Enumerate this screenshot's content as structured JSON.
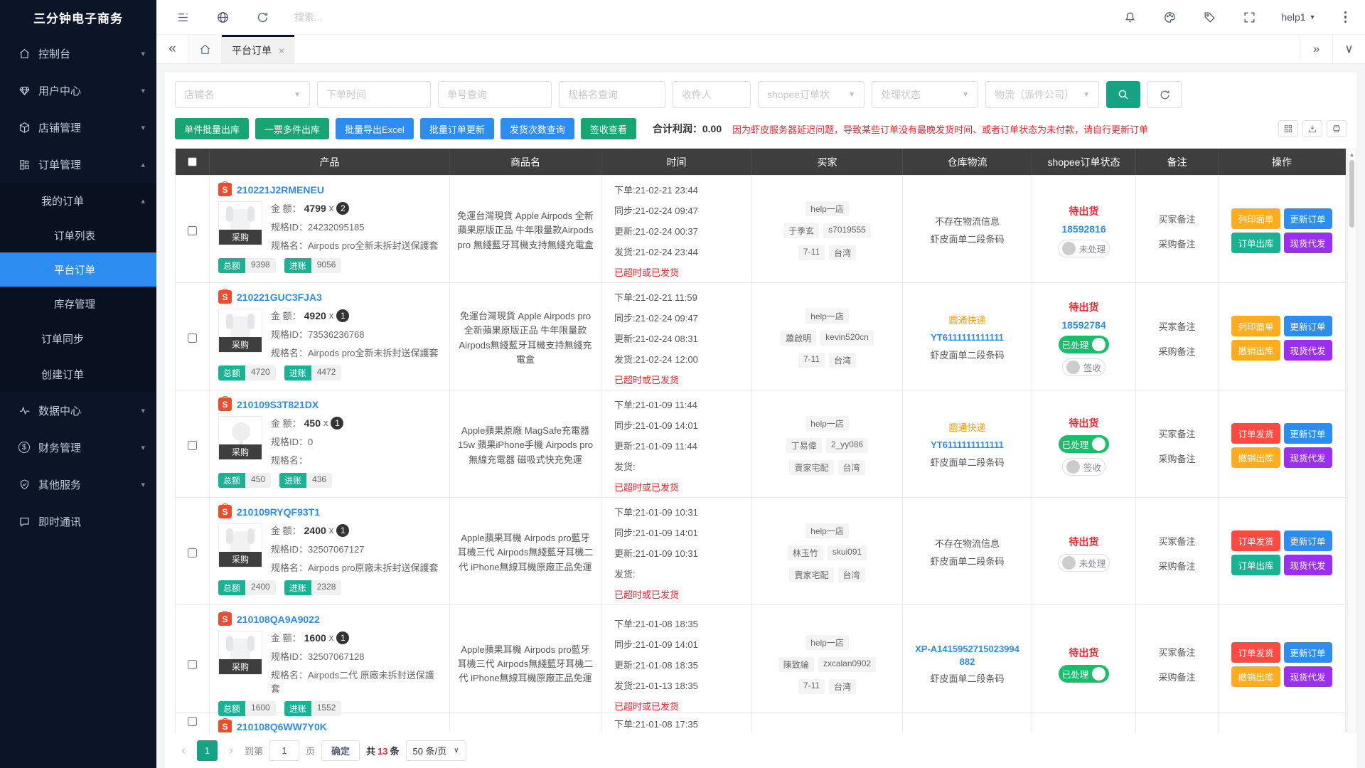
{
  "app": {
    "title": "三分钟电子商务",
    "user": "help1"
  },
  "topbar": {
    "search_placeholder": "搜索...",
    "icons": [
      "menu-icon",
      "globe-icon",
      "refresh-icon"
    ],
    "right_icons": [
      "bell-icon",
      "palette-icon",
      "tag-icon",
      "fullscreen-icon",
      "more-icon"
    ]
  },
  "tabbar": {
    "collapse": "«",
    "active_tab": "平台订单",
    "close": "×",
    "expand": "»",
    "chevron_down": "∨"
  },
  "sidebar": {
    "items": [
      {
        "label": "控制台",
        "icon": "home-icon",
        "caret": "down",
        "level": 0
      },
      {
        "label": "用户中心",
        "icon": "user-icon",
        "caret": "down",
        "level": 0
      },
      {
        "label": "店铺管理",
        "icon": "shop-icon",
        "caret": "down",
        "level": 0
      },
      {
        "label": "订单管理",
        "icon": "orders-icon",
        "caret": "up",
        "level": 0
      },
      {
        "label": "我的订单",
        "caret": "up",
        "level": 1
      },
      {
        "label": "订单列表",
        "level": 2
      },
      {
        "label": "平台订单",
        "level": 2,
        "active": true
      },
      {
        "label": "库存管理",
        "level": 2
      },
      {
        "label": "订单同步",
        "level": 1
      },
      {
        "label": "创建订单",
        "level": 1
      },
      {
        "label": "数据中心",
        "icon": "data-icon",
        "caret": "down",
        "level": 0
      },
      {
        "label": "财务管理",
        "icon": "finance-icon",
        "caret": "down",
        "level": 0
      },
      {
        "label": "其他服务",
        "icon": "services-icon",
        "caret": "down",
        "level": 0
      },
      {
        "label": "即时通讯",
        "icon": "chat-icon",
        "level": 0
      }
    ]
  },
  "filters": [
    {
      "placeholder": "店铺名",
      "type": "select"
    },
    {
      "placeholder": "下单时间",
      "type": "input"
    },
    {
      "placeholder": "单号查询",
      "type": "input"
    },
    {
      "placeholder": "规格名查询",
      "type": "input"
    },
    {
      "placeholder": "收件人",
      "type": "input"
    },
    {
      "placeholder": "shopee订单状",
      "type": "select"
    },
    {
      "placeholder": "处理状态",
      "type": "select"
    },
    {
      "placeholder": "物流（派件公司）",
      "type": "select"
    }
  ],
  "toolbar": {
    "buttons": [
      {
        "label": "单件批量出库",
        "color": "green"
      },
      {
        "label": "一票多件出库",
        "color": "green"
      },
      {
        "label": "批量导出Excel",
        "color": "blue"
      },
      {
        "label": "批量订单更新",
        "color": "blue"
      },
      {
        "label": "发货次数查询",
        "color": "blue"
      },
      {
        "label": "签收查看",
        "color": "green"
      }
    ],
    "profit": "合计利润：0.00",
    "warning": "因为虾皮服务器延迟问题，导致某些订单没有最晚发货时间、或者订单状态为未付款，请自行更新订单",
    "mini_icons": [
      "grid-icon",
      "export-icon",
      "print-icon"
    ]
  },
  "table": {
    "headers": [
      "产品",
      "商品名",
      "时间",
      "买家",
      "仓库物流",
      "shopee订单状态",
      "备注",
      "操作"
    ],
    "row_labels": {
      "amount": "金 额：",
      "multiply": "x",
      "spec_id": "规格ID：",
      "spec_name": "规格名：",
      "purchase": "采购",
      "total": "总额",
      "income": "进账"
    },
    "rows": [
      {
        "order_no": "210221J2RMENEU",
        "thumb": "airpods-2-image",
        "amount": "4799",
        "qty": "2",
        "spec_id": "24232095185",
        "spec_name": "Airpods pro全新未拆封送保護套",
        "total": "9398",
        "income": "9056",
        "product_name": "免運台灣現貨 Apple Airpods 全新蘋果原版正品 牛年限量款Airpods pro 無綫藍牙耳機支持無綫充電盒",
        "times": [
          "下单:21-02-21 23:44",
          "同步:21-02-24 09:47",
          "更新:21-02-24 00:37",
          "发货:21-02-24 23:44"
        ],
        "time_warning": "已超时或已发货",
        "buyer": [
          [
            "help一店"
          ],
          [
            "于季玄",
            "s7019555"
          ],
          [
            "7-11",
            "台湾"
          ]
        ],
        "warehouse": [
          {
            "text": "不存在物流信息",
            "style": "dark"
          },
          {
            "text": "虾皮面单二段条码",
            "style": "dark"
          }
        ],
        "status": {
          "state": "待出货",
          "number": "18592816",
          "toggles": [
            {
              "label": "未处理",
              "on": false
            }
          ]
        },
        "remarks": [
          "买家备注",
          "采购备注"
        ],
        "actions": [
          {
            "label": "列印面单",
            "color": "orange"
          },
          {
            "label": "更新订单",
            "color": "blue"
          },
          {
            "label": "订单出库",
            "color": "teal"
          },
          {
            "label": "现货代发",
            "color": "purple"
          }
        ]
      },
      {
        "order_no": "210221GUC3FJA3",
        "thumb": "airpods-pro-image",
        "amount": "4920",
        "qty": "1",
        "spec_id": "73536236768",
        "spec_name": "Airpods pro全新未拆封送保護套",
        "total": "4720",
        "income": "4472",
        "product_name": "免運台灣現貨 Apple Airpods pro 全新蘋果原版正品 牛年限量款 Airpods無綫藍牙耳機支持無綫充電盒",
        "times": [
          "下单:21-02-21 11:59",
          "同步:21-02-24 09:47",
          "更新:21-02-24 08:31",
          "发货:21-02-24 12:00"
        ],
        "time_warning": "已超时或已发货",
        "buyer": [
          [
            "help一店"
          ],
          [
            "蕭啟明",
            "kevin520cn"
          ],
          [
            "7-11",
            "台湾"
          ]
        ],
        "warehouse": [
          {
            "text": "圆通快递",
            "style": "orange"
          },
          {
            "text": "YT6111111111111",
            "style": "blue"
          },
          {
            "text": "虾皮面单二段条码",
            "style": "dark"
          }
        ],
        "status": {
          "state": "待出货",
          "number": "18592784",
          "toggles": [
            {
              "label": "已处理",
              "on": true
            },
            {
              "label": "签收",
              "on": false
            }
          ]
        },
        "remarks": [
          "买家备注",
          "采购备注"
        ],
        "actions": [
          {
            "label": "列印面单",
            "color": "orange"
          },
          {
            "label": "更新订单",
            "color": "blue"
          },
          {
            "label": "撤销出库",
            "color": "orange"
          },
          {
            "label": "现货代发",
            "color": "purple"
          }
        ]
      },
      {
        "order_no": "210109S3T821DX",
        "thumb": "magsafe-charger-image",
        "amount": "450",
        "qty": "1",
        "spec_id": "0",
        "spec_name": "",
        "total": "450",
        "income": "436",
        "product_name": "Apple蘋果原廠 MagSafe充電器15w 蘋果iPhone手機 Airpods pro 無線充電器 磁吸式快充免運",
        "times": [
          "下单:21-01-09 11:44",
          "同步:21-01-09 14:01",
          "更新:21-01-09 11:44",
          "发货:"
        ],
        "time_warning": "已超时或已发货",
        "buyer": [
          [
            "help一店"
          ],
          [
            "丁易偉",
            "2_yy086"
          ],
          [
            "賣家宅配",
            "台湾"
          ]
        ],
        "warehouse": [
          {
            "text": "圆通快递",
            "style": "orange"
          },
          {
            "text": "YT6111111111111",
            "style": "blue"
          },
          {
            "text": "虾皮面单二段条码",
            "style": "dark"
          }
        ],
        "status": {
          "state": "待出货",
          "number": "",
          "toggles": [
            {
              "label": "已处理",
              "on": true
            },
            {
              "label": "签收",
              "on": false
            }
          ]
        },
        "remarks": [
          "买家备注",
          "采购备注"
        ],
        "actions": [
          {
            "label": "订单发货",
            "color": "red"
          },
          {
            "label": "更新订单",
            "color": "blue"
          },
          {
            "label": "撤销出库",
            "color": "orange"
          },
          {
            "label": "现货代发",
            "color": "purple"
          }
        ]
      },
      {
        "order_no": "210109RYQF93T1",
        "thumb": "airpods-pro-image",
        "amount": "2400",
        "qty": "1",
        "spec_id": "32507067127",
        "spec_name": "Airpods pro原廠未拆封送保護套",
        "total": "2400",
        "income": "2328",
        "product_name": "Apple蘋果耳機 Airpods pro藍牙耳機三代 Airpods無綫藍牙耳機二代 iPhone無線耳機原廠正品免運",
        "times": [
          "下单:21-01-09 10:31",
          "同步:21-01-09 14:01",
          "更新:21-01-09 10:31",
          "发货:"
        ],
        "time_warning": "已超时或已发货",
        "buyer": [
          [
            "help一店"
          ],
          [
            "林玉竹",
            "skui091"
          ],
          [
            "賣家宅配",
            "台湾"
          ]
        ],
        "warehouse": [
          {
            "text": "不存在物流信息",
            "style": "dark"
          },
          {
            "text": "虾皮面单二段条码",
            "style": "dark"
          }
        ],
        "status": {
          "state": "待出货",
          "number": "",
          "toggles": [
            {
              "label": "未处理",
              "on": false
            }
          ]
        },
        "remarks": [
          "买家备注",
          "采购备注"
        ],
        "actions": [
          {
            "label": "订单发货",
            "color": "red"
          },
          {
            "label": "更新订单",
            "color": "blue"
          },
          {
            "label": "订单出库",
            "color": "teal"
          },
          {
            "label": "现货代发",
            "color": "purple"
          }
        ]
      },
      {
        "order_no": "210108QA9A9022",
        "thumb": "airpods-2-image",
        "amount": "1600",
        "qty": "1",
        "spec_id": "32507067128",
        "spec_name": "Airpods二代 原廠未拆封送保護套",
        "total": "1600",
        "income": "1552",
        "product_name": "Apple蘋果耳機 Airpods pro藍牙耳機三代 Airpods無綫藍牙耳機二代 iPhone無線耳機原廠正品免運",
        "times": [
          "下单:21-01-08 18:35",
          "同步:21-01-09 14:01",
          "更新:21-01-08 18:35",
          "发货:21-01-13 18:35"
        ],
        "time_warning": "已超时或已发货",
        "buyer": [
          [
            "help一店"
          ],
          [
            "陳致綸",
            "zxcalan0902"
          ],
          [
            "7-11",
            "台湾"
          ]
        ],
        "warehouse": [
          {
            "text": "XP-A1415952715023994882",
            "style": "blue"
          },
          {
            "text": "虾皮面单二段条码",
            "style": "dark"
          }
        ],
        "status": {
          "state": "待出货",
          "number": "",
          "toggles": [
            {
              "label": "已处理",
              "on": true
            }
          ]
        },
        "remarks": [
          "买家备注",
          "采购备注"
        ],
        "actions": [
          {
            "label": "订单发货",
            "color": "red"
          },
          {
            "label": "更新订单",
            "color": "blue"
          },
          {
            "label": "撤销出库",
            "color": "orange"
          },
          {
            "label": "现货代发",
            "color": "purple"
          }
        ]
      },
      {
        "order_no": "210108Q6WW7Y0K",
        "partial": true,
        "times": [
          "下单:21-01-08 17:35"
        ]
      }
    ]
  },
  "pagination": {
    "prev": "‹",
    "next": "›",
    "current_page": "1",
    "goto_label": "到第",
    "page_input": "1",
    "page_label": "页",
    "confirm": "确定",
    "total_prefix": "共",
    "total_count": "13",
    "total_suffix": "条",
    "page_size": "50 条/页"
  }
}
